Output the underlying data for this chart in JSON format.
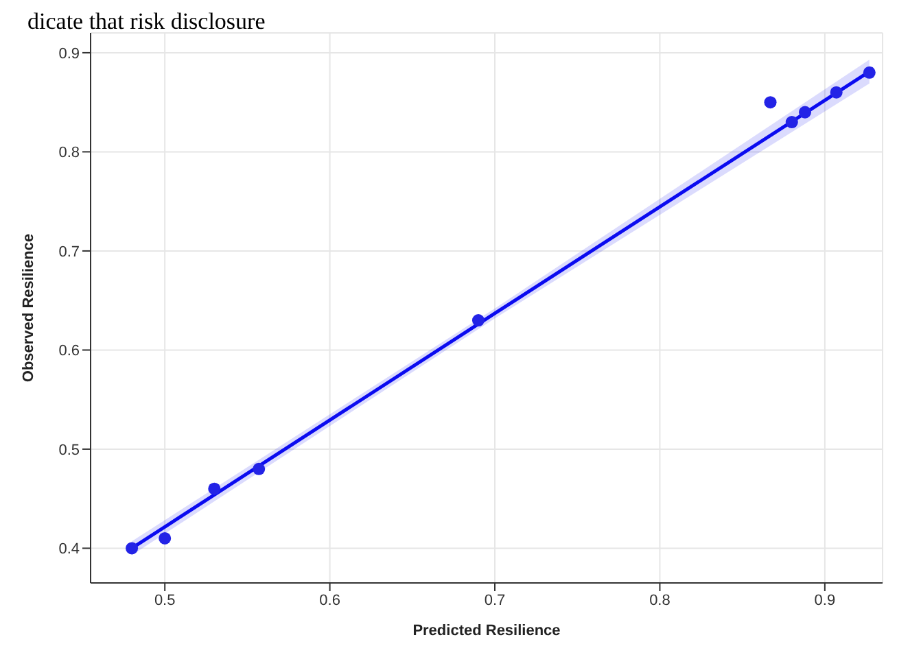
{
  "chart_data": {
    "type": "scatter",
    "xlabel": "Predicted Resilience",
    "ylabel": "Observed Resilience",
    "annotations": [
      "dicate that risk disclosure"
    ],
    "x": [
      0.48,
      0.5,
      0.53,
      0.557,
      0.69,
      0.867,
      0.88,
      0.888,
      0.907,
      0.927
    ],
    "series": [
      {
        "type": "scatter",
        "color": "#2323e6",
        "marker": "circle",
        "values": [
          0.4,
          0.41,
          0.46,
          0.48,
          0.63,
          0.85,
          0.83,
          0.84,
          0.86,
          0.88
        ]
      },
      {
        "type": "line",
        "color": "#0b0bf0",
        "marker": "none",
        "line_style": "solid",
        "x": [
          0.48,
          0.7,
          0.927
        ],
        "values": [
          0.4,
          0.637,
          0.881
        ],
        "lower": [
          0.393,
          0.632,
          0.869
        ],
        "upper": [
          0.407,
          0.642,
          0.893
        ]
      }
    ],
    "xlim": [
      0.455,
      0.935
    ],
    "xticks": [
      0.5,
      0.6,
      0.7,
      0.8,
      0.9
    ],
    "ylim": [
      0.365,
      0.92
    ],
    "yticks": [
      0.4,
      0.5,
      0.6,
      0.7,
      0.8,
      0.9
    ],
    "grid": true
  }
}
